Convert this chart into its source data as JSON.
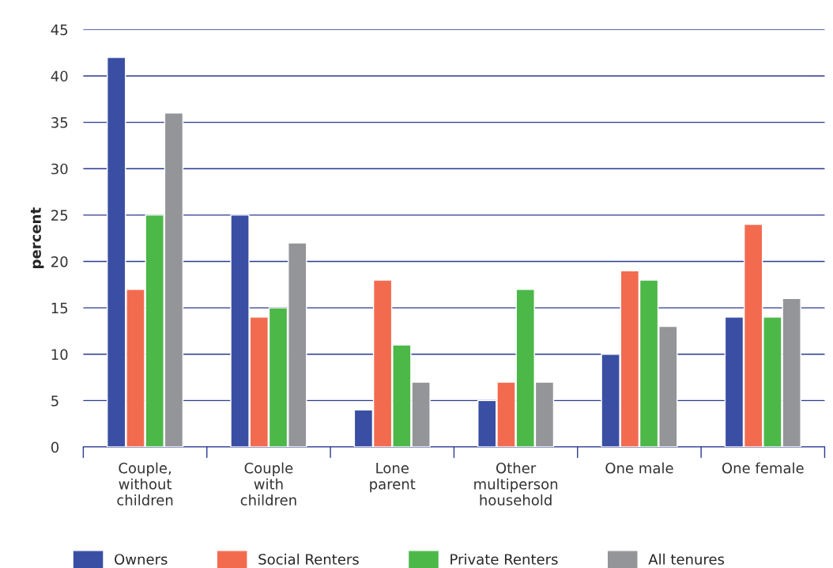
{
  "chart_data": {
    "type": "bar",
    "ylabel": "percent",
    "categories": [
      "Couple,\nwithout\nchildren",
      "Couple\nwith\nchildren",
      "Lone\nparent",
      "Other\nmultiperson\nhousehold",
      "One male",
      "One female"
    ],
    "series": [
      {
        "name": "Owners",
        "color": "#3a4fa3",
        "values": [
          42,
          25,
          4,
          5,
          10,
          14
        ]
      },
      {
        "name": "Social Renters",
        "color": "#f26b4f",
        "values": [
          17,
          14,
          18,
          7,
          19,
          24
        ]
      },
      {
        "name": "Private Renters",
        "color": "#4cb848",
        "values": [
          25,
          15,
          11,
          17,
          18,
          14
        ]
      },
      {
        "name": "All tenures",
        "color": "#939598",
        "values": [
          36,
          22,
          7,
          7,
          13,
          16
        ]
      }
    ],
    "ylim": [
      0,
      45
    ],
    "yticks": [
      0,
      5,
      10,
      15,
      20,
      25,
      30,
      35,
      40,
      45
    ],
    "grid": "y",
    "legend": "bottom"
  }
}
